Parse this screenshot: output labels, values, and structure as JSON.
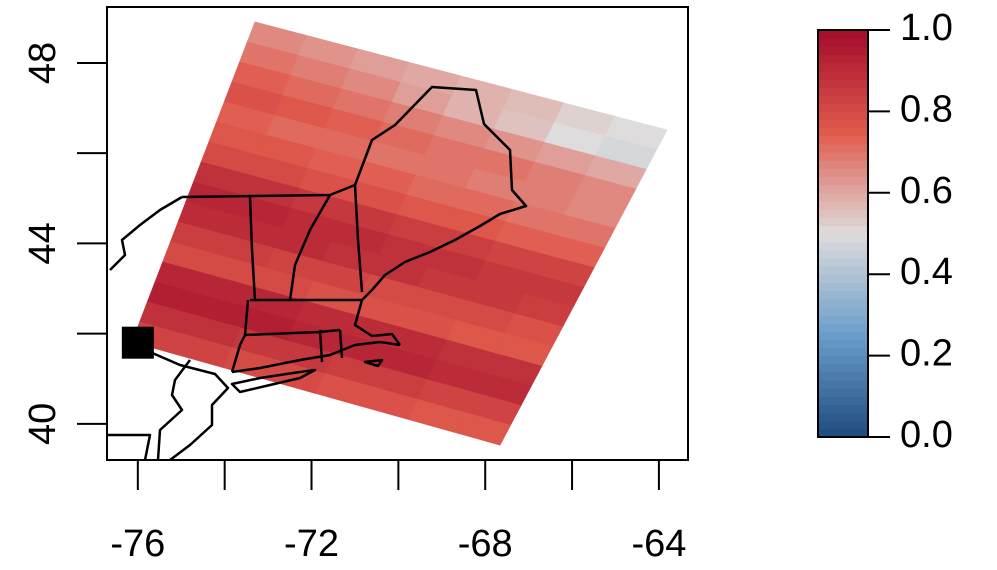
{
  "chart_data": {
    "type": "heatmap",
    "xlim": [
      -76.71,
      -63.33
    ],
    "ylim": [
      39.2,
      49.24
    ],
    "xticks": [
      -76,
      -72,
      -68,
      -64
    ],
    "xminor_ticks": [
      -74,
      -70,
      -66
    ],
    "yticks": [
      40,
      44,
      48
    ],
    "yminor_ticks": [
      42,
      46
    ],
    "marker": {
      "x": -76,
      "y": 41.8
    },
    "colormap": [
      "#1f4a7f",
      "#6a9dca",
      "#dedcdc",
      "#e05a4c",
      "#a30d2b"
    ],
    "colorbar_lim": [
      0,
      1
    ],
    "colorbar_ticks": [
      {
        "value": 0,
        "label": "0.0"
      },
      {
        "value": 0.2,
        "label": "0.2"
      },
      {
        "value": 0.4,
        "label": "0.4"
      },
      {
        "value": 0.6,
        "label": "0.6"
      },
      {
        "value": 0.8,
        "label": "0.8"
      },
      {
        "value": 1,
        "label": "1.0"
      }
    ],
    "field": [
      [
        0.66,
        0.64,
        0.62,
        0.6,
        0.58,
        0.56,
        0.52,
        0.5
      ],
      [
        0.7,
        0.68,
        0.66,
        0.62,
        0.58,
        0.55,
        0.5,
        0.48
      ],
      [
        0.74,
        0.72,
        0.7,
        0.68,
        0.66,
        0.64,
        0.62,
        0.6
      ],
      [
        0.78,
        0.76,
        0.74,
        0.72,
        0.7,
        0.7,
        0.68,
        0.66
      ],
      [
        0.74,
        0.72,
        0.72,
        0.7,
        0.7,
        0.68,
        0.68,
        0.66
      ],
      [
        0.76,
        0.76,
        0.74,
        0.74,
        0.72,
        0.72,
        0.7,
        0.7
      ],
      [
        0.8,
        0.8,
        0.78,
        0.78,
        0.76,
        0.76,
        0.74,
        0.74
      ],
      [
        0.88,
        0.88,
        0.86,
        0.86,
        0.84,
        0.84,
        0.82,
        0.82
      ],
      [
        0.92,
        0.92,
        0.9,
        0.9,
        0.88,
        0.88,
        0.86,
        0.86
      ],
      [
        0.9,
        0.9,
        0.9,
        0.88,
        0.88,
        0.86,
        0.86,
        0.84
      ],
      [
        0.84,
        0.84,
        0.82,
        0.82,
        0.8,
        0.8,
        0.8,
        0.78
      ],
      [
        0.8,
        0.8,
        0.8,
        0.78,
        0.78,
        0.78,
        0.76,
        0.76
      ],
      [
        0.92,
        0.92,
        0.92,
        0.9,
        0.9,
        0.9,
        0.88,
        0.88
      ],
      [
        0.94,
        0.94,
        0.94,
        0.92,
        0.92,
        0.92,
        0.9,
        0.9
      ],
      [
        0.88,
        0.88,
        0.86,
        0.86,
        0.84,
        0.84,
        0.82,
        0.82
      ],
      [
        0.82,
        0.82,
        0.8,
        0.8,
        0.78,
        0.78,
        0.76,
        0.76
      ]
    ]
  }
}
